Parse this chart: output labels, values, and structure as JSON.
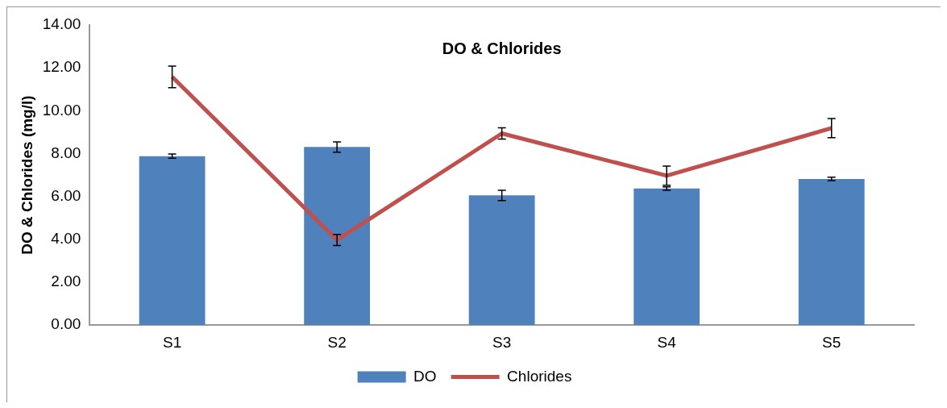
{
  "chart_data": {
    "type": "bar",
    "title": "DO & Chlorides",
    "ylabel": "DO & Chlorides (mg/l)",
    "categories": [
      "S1",
      "S2",
      "S3",
      "S4",
      "S5"
    ],
    "series": [
      {
        "name": "DO",
        "color": "#4f81bd",
        "values": [
          7.88,
          8.31,
          6.05,
          6.37,
          6.82
        ],
        "errors": [
          0.1,
          0.24,
          0.24,
          0.08,
          0.08
        ]
      },
      {
        "name": "Chlorides",
        "type": "line",
        "color": "#c0504d",
        "values": [
          11.58,
          3.97,
          8.94,
          6.97,
          9.19
        ],
        "errors": [
          0.5,
          0.26,
          0.26,
          0.45,
          0.45
        ]
      }
    ],
    "ylim": [
      0,
      14
    ],
    "yticks": [
      {
        "value": 0,
        "label": "0.00"
      },
      {
        "value": 2,
        "label": "2.00"
      },
      {
        "value": 4,
        "label": "4.00"
      },
      {
        "value": 6,
        "label": "6.00"
      },
      {
        "value": 8,
        "label": "8.00"
      },
      {
        "value": 10,
        "label": "10.00"
      },
      {
        "value": 12,
        "label": "12.00"
      },
      {
        "value": 14,
        "label": "14.00"
      }
    ],
    "grid": false,
    "legend": "bottom",
    "marker": "none"
  }
}
